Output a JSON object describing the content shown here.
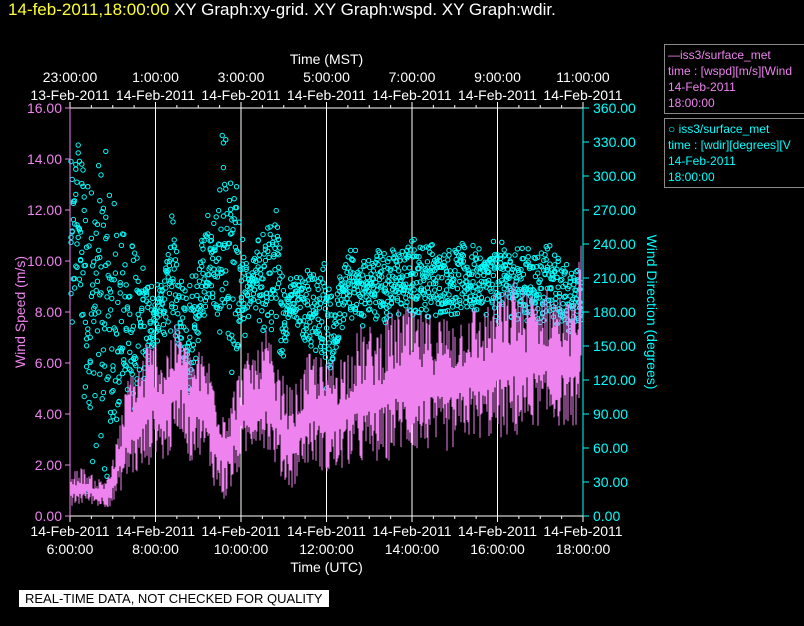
{
  "header": {
    "timestamp": "14-feb-2011,18:00:00",
    "graphs": "XY Graph:xy-grid.  XY Graph:wspd.  XY Graph:wdir."
  },
  "legend": [
    {
      "line1": "—iss3/surface_met",
      "line2": "time : [wspd][m/s][Wind",
      "line3": "14-Feb-2011",
      "line4": "18:00:00",
      "color": "#ee82ee"
    },
    {
      "line1": "○ iss3/surface_met",
      "line2": "time : [wdir][degrees][V",
      "line3": "14-Feb-2011",
      "line4": "18:00:00",
      "color": "#00ffff"
    }
  ],
  "quality_note": "REAL-TIME DATA, NOT CHECKED FOR QUALITY",
  "chart_data": {
    "type": "line",
    "top_axis": {
      "title": "Time (MST)",
      "ticks": [
        {
          "time": "23:00:00",
          "date": "13-Feb-2011"
        },
        {
          "time": "1:00:00",
          "date": "14-Feb-2011"
        },
        {
          "time": "3:00:00",
          "date": "14-Feb-2011"
        },
        {
          "time": "5:00:00",
          "date": "14-Feb-2011"
        },
        {
          "time": "7:00:00",
          "date": "14-Feb-2011"
        },
        {
          "time": "9:00:00",
          "date": "14-Feb-2011"
        },
        {
          "time": "11:00:00",
          "date": "14-Feb-2011"
        }
      ]
    },
    "bottom_axis": {
      "title": "Time (UTC)",
      "ticks": [
        {
          "date": "14-Feb-2011",
          "time": "6:00:00"
        },
        {
          "date": "14-Feb-2011",
          "time": "8:00:00"
        },
        {
          "date": "14-Feb-2011",
          "time": "10:00:00"
        },
        {
          "date": "14-Feb-2011",
          "time": "12:00:00"
        },
        {
          "date": "14-Feb-2011",
          "time": "14:00:00"
        },
        {
          "date": "14-Feb-2011",
          "time": "16:00:00"
        },
        {
          "date": "14-Feb-2011",
          "time": "18:00:00"
        }
      ],
      "range_hours_utc": [
        6,
        18
      ]
    },
    "left_axis": {
      "label": "Wind Speed (m/s)",
      "ylim": [
        0,
        16
      ],
      "ticks": [
        "0.00",
        "2.00",
        "4.00",
        "6.00",
        "8.00",
        "10.00",
        "12.00",
        "14.00",
        "16.00"
      ],
      "color": "#ee82ee"
    },
    "right_axis": {
      "label": "Wind Direction (degrees)",
      "ylim": [
        0,
        360
      ],
      "ticks": [
        "0.00",
        "30.00",
        "60.00",
        "90.00",
        "120.00",
        "150.00",
        "180.00",
        "210.00",
        "240.00",
        "270.00",
        "300.00",
        "330.00",
        "360.00"
      ],
      "color": "#00ffff"
    },
    "grid": "vertical",
    "series": [
      {
        "name": "iss3/surface_met",
        "variable": "wspd",
        "axis": "left",
        "style": "line",
        "color": "#ee82ee",
        "x_hours_utc": [
          6.0,
          6.2,
          6.4,
          6.6,
          6.8,
          7.0,
          7.2,
          7.4,
          7.6,
          7.8,
          8.0,
          8.2,
          8.4,
          8.6,
          8.8,
          9.0,
          9.2,
          9.4,
          9.6,
          9.8,
          10.0,
          10.2,
          10.4,
          10.6,
          10.8,
          11.0,
          11.2,
          11.4,
          11.6,
          11.8,
          12.0,
          12.2,
          12.4,
          12.6,
          12.8,
          13.0,
          13.2,
          13.4,
          13.6,
          13.8,
          14.0,
          14.2,
          14.4,
          14.6,
          14.8,
          15.0,
          15.2,
          15.4,
          15.6,
          15.8,
          16.0,
          16.2,
          16.4,
          16.6,
          16.8,
          17.0,
          17.2,
          17.4,
          17.6,
          17.8,
          18.0
        ],
        "low": [
          0.3,
          0.4,
          0.5,
          0.4,
          0.3,
          0.4,
          1.0,
          1.5,
          1.5,
          1.8,
          2.5,
          2.0,
          2.5,
          3.5,
          2.0,
          2.5,
          2.0,
          1.0,
          0.5,
          1.0,
          2.0,
          2.5,
          3.0,
          2.5,
          2.0,
          1.2,
          1.0,
          1.8,
          2.0,
          2.0,
          1.5,
          1.5,
          1.8,
          2.0,
          2.0,
          2.0,
          2.0,
          2.0,
          2.5,
          2.5,
          2.5,
          2.5,
          2.5,
          2.5,
          2.5,
          2.5,
          3.0,
          3.0,
          3.0,
          3.0,
          3.0,
          3.0,
          3.0,
          3.0,
          3.5,
          3.5,
          3.5,
          3.5,
          3.5,
          3.5,
          3.5
        ],
        "high": [
          1.5,
          2.0,
          1.8,
          1.5,
          1.5,
          2.2,
          4.0,
          6.0,
          6.0,
          7.0,
          7.0,
          6.5,
          7.5,
          7.5,
          6.5,
          6.5,
          6.5,
          5.5,
          4.5,
          5.0,
          6.0,
          6.5,
          6.5,
          7.5,
          6.0,
          5.5,
          5.0,
          5.5,
          6.5,
          6.5,
          6.0,
          6.5,
          6.5,
          7.0,
          7.5,
          7.5,
          7.5,
          8.0,
          8.0,
          8.5,
          8.0,
          8.0,
          8.0,
          8.0,
          8.0,
          8.0,
          8.0,
          8.5,
          8.0,
          8.5,
          9.0,
          9.0,
          9.5,
          9.0,
          9.0,
          9.0,
          9.0,
          9.0,
          8.5,
          8.5,
          11.5
        ]
      },
      {
        "name": "iss3/surface_met",
        "variable": "wdir",
        "axis": "right",
        "style": "circles",
        "color": "#00ffff",
        "x_hours_utc": [
          6.0,
          6.2,
          6.4,
          6.6,
          6.8,
          7.0,
          7.2,
          7.4,
          7.6,
          7.8,
          8.0,
          8.2,
          8.4,
          8.6,
          8.8,
          9.0,
          9.2,
          9.4,
          9.6,
          9.8,
          10.0,
          10.2,
          10.4,
          10.6,
          10.8,
          11.0,
          11.2,
          11.4,
          11.6,
          11.8,
          12.0,
          12.2,
          12.4,
          12.6,
          12.8,
          13.0,
          13.2,
          13.4,
          13.6,
          13.8,
          14.0,
          14.2,
          14.4,
          14.6,
          14.8,
          15.0,
          15.2,
          15.4,
          15.6,
          15.8,
          16.0,
          16.2,
          16.4,
          16.6,
          16.8,
          17.0,
          17.2,
          17.4,
          17.6,
          17.8,
          18.0
        ],
        "low": [
          120,
          200,
          10,
          60,
          40,
          20,
          100,
          40,
          80,
          120,
          150,
          160,
          160,
          140,
          100,
          130,
          180,
          170,
          150,
          100,
          140,
          180,
          170,
          150,
          160,
          130,
          180,
          160,
          150,
          140,
          110,
          130,
          170,
          170,
          165,
          170,
          175,
          170,
          175,
          175,
          175,
          180,
          175,
          175,
          180,
          175,
          180,
          175,
          180,
          175,
          170,
          175,
          175,
          170,
          175,
          170,
          170,
          165,
          165,
          160,
          160
        ],
        "high": [
          310,
          340,
          360,
          300,
          330,
          290,
          250,
          260,
          230,
          220,
          200,
          220,
          270,
          220,
          210,
          230,
          270,
          260,
          360,
          320,
          260,
          210,
          250,
          260,
          280,
          220,
          210,
          220,
          230,
          220,
          230,
          200,
          220,
          240,
          230,
          230,
          240,
          235,
          240,
          235,
          250,
          240,
          245,
          240,
          235,
          245,
          240,
          240,
          235,
          240,
          245,
          240,
          235,
          240,
          235,
          235,
          240,
          230,
          225,
          220,
          215
        ]
      }
    ]
  }
}
